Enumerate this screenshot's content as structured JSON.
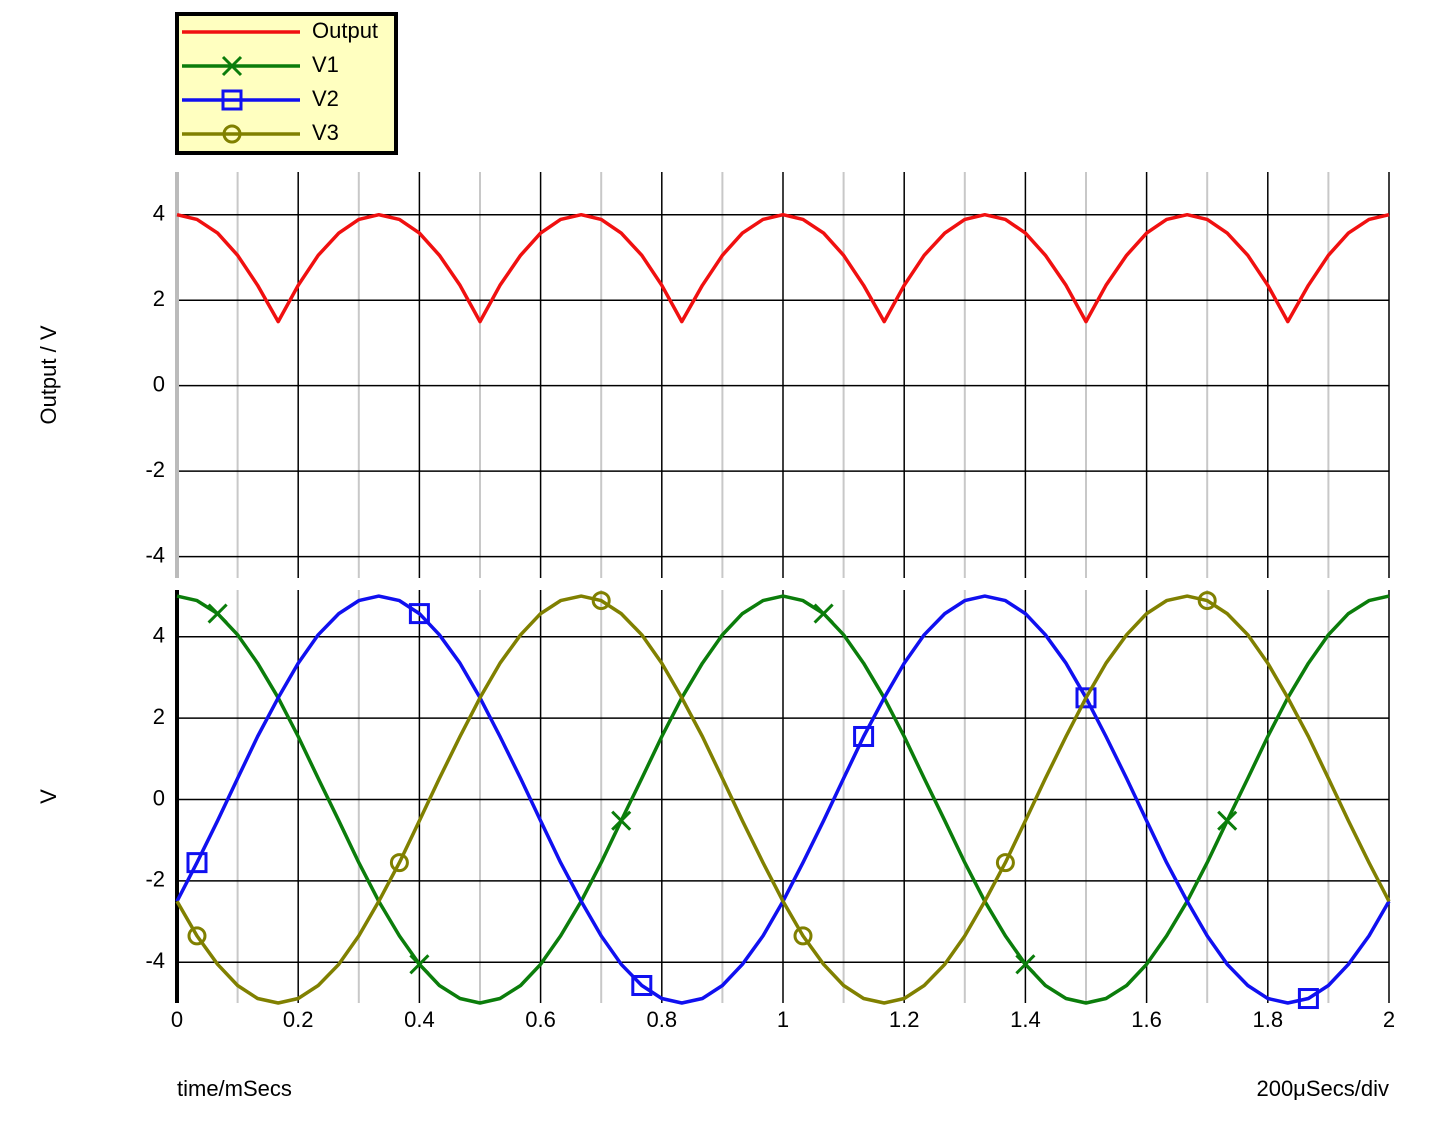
{
  "chart_data": [
    {
      "type": "line",
      "ylabel": "Output / V",
      "x": [
        0,
        0.033,
        0.067,
        0.1,
        0.133,
        0.167,
        0.2,
        0.233,
        0.267,
        0.3,
        0.333,
        0.367,
        0.4,
        0.433,
        0.467,
        0.5,
        0.533,
        0.567,
        0.6,
        0.633,
        0.667,
        0.7,
        0.733,
        0.767,
        0.8,
        0.833,
        0.867,
        0.9,
        0.933,
        0.967,
        1,
        1.033,
        1.067,
        1.1,
        1.133,
        1.167,
        1.2,
        1.233,
        1.267,
        1.3,
        1.333,
        1.367,
        1.4,
        1.433,
        1.467,
        1.5,
        1.533,
        1.567,
        1.6,
        1.633,
        1.667,
        1.7,
        1.733,
        1.767,
        1.8,
        1.833,
        1.867,
        1.9,
        1.933,
        1.967,
        2
      ],
      "series": [
        {
          "name": "Output",
          "color": "#f01010",
          "marker": "none",
          "values": [
            4,
            3.89,
            3.57,
            3.05,
            2.35,
            1.5,
            2.35,
            3.05,
            3.57,
            3.89,
            4,
            3.89,
            3.57,
            3.05,
            2.35,
            1.5,
            2.35,
            3.05,
            3.57,
            3.89,
            4,
            3.89,
            3.57,
            3.05,
            2.35,
            1.5,
            2.35,
            3.05,
            3.57,
            3.89,
            4,
            3.89,
            3.57,
            3.05,
            2.35,
            1.5,
            2.35,
            3.05,
            3.57,
            3.89,
            4,
            3.89,
            3.57,
            3.05,
            2.35,
            1.5,
            2.35,
            3.05,
            3.57,
            3.89,
            4,
            3.89,
            3.57,
            3.05,
            2.35,
            1.5,
            2.35,
            3.05,
            3.57,
            3.89,
            4
          ]
        }
      ],
      "xlim": [
        0,
        2
      ],
      "xticks": [
        0,
        0.2,
        0.4,
        0.6,
        0.8,
        1,
        1.2,
        1.4,
        1.6,
        1.8,
        2
      ],
      "ylim": [
        -4.5,
        5
      ],
      "yticks": [
        -4,
        -2,
        0,
        2,
        4
      ],
      "grid": true
    },
    {
      "type": "line",
      "ylabel": "V",
      "xlabel": "time/mSecs",
      "annotation": "200μSecs/div",
      "x": [
        0,
        0.033,
        0.067,
        0.1,
        0.133,
        0.167,
        0.2,
        0.233,
        0.267,
        0.3,
        0.333,
        0.367,
        0.4,
        0.433,
        0.467,
        0.5,
        0.533,
        0.567,
        0.6,
        0.633,
        0.667,
        0.7,
        0.733,
        0.767,
        0.8,
        0.833,
        0.867,
        0.9,
        0.933,
        0.967,
        1,
        1.033,
        1.067,
        1.1,
        1.133,
        1.167,
        1.2,
        1.233,
        1.267,
        1.3,
        1.333,
        1.367,
        1.4,
        1.433,
        1.467,
        1.5,
        1.533,
        1.567,
        1.6,
        1.633,
        1.667,
        1.7,
        1.733,
        1.767,
        1.8,
        1.833,
        1.867,
        1.9,
        1.933,
        1.967,
        2
      ],
      "series": [
        {
          "name": "V1",
          "color": "#0b7d0b",
          "marker": "x",
          "values": [
            5,
            4.89,
            4.57,
            4.05,
            3.35,
            2.5,
            1.55,
            0.52,
            -0.52,
            -1.55,
            -2.5,
            -3.35,
            -4.05,
            -4.57,
            -4.89,
            -5,
            -4.89,
            -4.57,
            -4.05,
            -3.35,
            -2.5,
            -1.55,
            -0.52,
            0.52,
            1.55,
            2.5,
            3.35,
            4.05,
            4.57,
            4.89,
            5,
            4.89,
            4.57,
            4.05,
            3.35,
            2.5,
            1.55,
            0.52,
            -0.52,
            -1.55,
            -2.5,
            -3.35,
            -4.05,
            -4.57,
            -4.89,
            -5,
            -4.89,
            -4.57,
            -4.05,
            -3.35,
            -2.5,
            -1.55,
            -0.52,
            0.52,
            1.55,
            2.5,
            3.35,
            4.05,
            4.57,
            4.89,
            5
          ]
        },
        {
          "name": "V2",
          "color": "#1010f0",
          "marker": "square",
          "values": [
            -2.5,
            -1.55,
            -0.52,
            0.52,
            1.55,
            2.5,
            3.35,
            4.05,
            4.57,
            4.89,
            5,
            4.89,
            4.57,
            4.05,
            3.35,
            2.5,
            1.55,
            0.52,
            -0.52,
            -1.55,
            -2.5,
            -3.35,
            -4.05,
            -4.57,
            -4.89,
            -5,
            -4.89,
            -4.57,
            -4.05,
            -3.35,
            -2.5,
            -1.55,
            -0.52,
            0.52,
            1.55,
            2.5,
            3.35,
            4.05,
            4.57,
            4.89,
            5,
            4.89,
            4.57,
            4.05,
            3.35,
            2.5,
            1.55,
            0.52,
            -0.52,
            -1.55,
            -2.5,
            -3.35,
            -4.05,
            -4.57,
            -4.89,
            -5,
            -4.89,
            -4.57,
            -4.05,
            -3.35,
            -2.5
          ]
        },
        {
          "name": "V3",
          "color": "#808000",
          "marker": "circle",
          "values": [
            -2.5,
            -3.35,
            -4.05,
            -4.57,
            -4.89,
            -5,
            -4.89,
            -4.57,
            -4.05,
            -3.35,
            -2.5,
            -1.55,
            -0.52,
            0.52,
            1.55,
            2.5,
            3.35,
            4.05,
            4.57,
            4.89,
            5,
            4.89,
            4.57,
            4.05,
            3.35,
            2.5,
            1.55,
            0.52,
            -0.52,
            -1.55,
            -2.5,
            -3.35,
            -4.05,
            -4.57,
            -4.89,
            -5,
            -4.89,
            -4.57,
            -4.05,
            -3.35,
            -2.5,
            -1.55,
            -0.52,
            0.52,
            1.55,
            2.5,
            3.35,
            4.05,
            4.57,
            4.89,
            5,
            4.89,
            4.57,
            4.05,
            3.35,
            2.5,
            1.55,
            0.52,
            -0.52,
            -1.55,
            -2.5
          ]
        }
      ],
      "xlim": [
        0,
        2
      ],
      "xticks": [
        0,
        0.2,
        0.4,
        0.6,
        0.8,
        1,
        1.2,
        1.4,
        1.6,
        1.8,
        2
      ],
      "ylim": [
        -5,
        5.15
      ],
      "yticks": [
        -4,
        -2,
        0,
        2,
        4
      ],
      "grid": true
    }
  ]
}
